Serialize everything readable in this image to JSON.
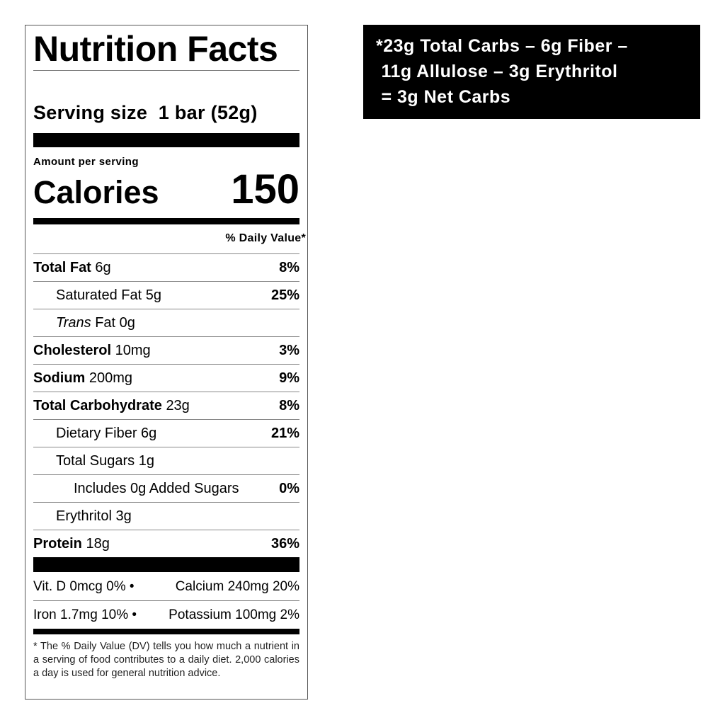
{
  "label": {
    "title": "Nutrition Facts",
    "serving_size": "Serving size  1 bar (52g)",
    "amount_per_serving": "Amount per serving",
    "calories_label": "Calories",
    "calories_value": "150",
    "daily_value_header": "% Daily Value*",
    "rows": [
      {
        "name": "Total Fat",
        "amount": "6g",
        "dv": "8%"
      },
      {
        "name": "Saturated Fat",
        "amount": "5g",
        "dv": "25%"
      },
      {
        "name": "Trans",
        "amount": "Fat 0g",
        "dv": ""
      },
      {
        "name": "Cholesterol",
        "amount": "10mg",
        "dv": "3%"
      },
      {
        "name": "Sodium",
        "amount": "200mg",
        "dv": "9%"
      },
      {
        "name": "Total Carbohydrate",
        "amount": "23g",
        "dv": "8%"
      },
      {
        "name": "Dietary Fiber",
        "amount": "6g",
        "dv": "21%"
      },
      {
        "name": "Total Sugars",
        "amount": "1g",
        "dv": ""
      },
      {
        "name": "Includes 0g Added Sugars",
        "amount": "",
        "dv": "0%"
      },
      {
        "name": "Erythritol",
        "amount": "3g",
        "dv": ""
      },
      {
        "name": "Protein",
        "amount": "18g",
        "dv": "36%"
      }
    ],
    "vitamins": [
      {
        "left": "Vit. D 0mcg 0%  •",
        "right": "Calcium 240mg 20%"
      },
      {
        "left": "Iron 1.7mg 10% •",
        "right": "Potassium 100mg 2%"
      }
    ],
    "footnote": "* The % Daily Value (DV) tells you how much a nutrient in a serving of food contributes to a daily diet. 2,000 calories a day is used for general nutrition advice."
  },
  "net_carbs_box": {
    "lines": [
      "*23g Total Carbs – 6g Fiber –",
      " 11g Allulose – 3g Erythritol",
      " = 3g Net Carbs"
    ],
    "background": "#000000",
    "text_color": "#ffffff"
  }
}
